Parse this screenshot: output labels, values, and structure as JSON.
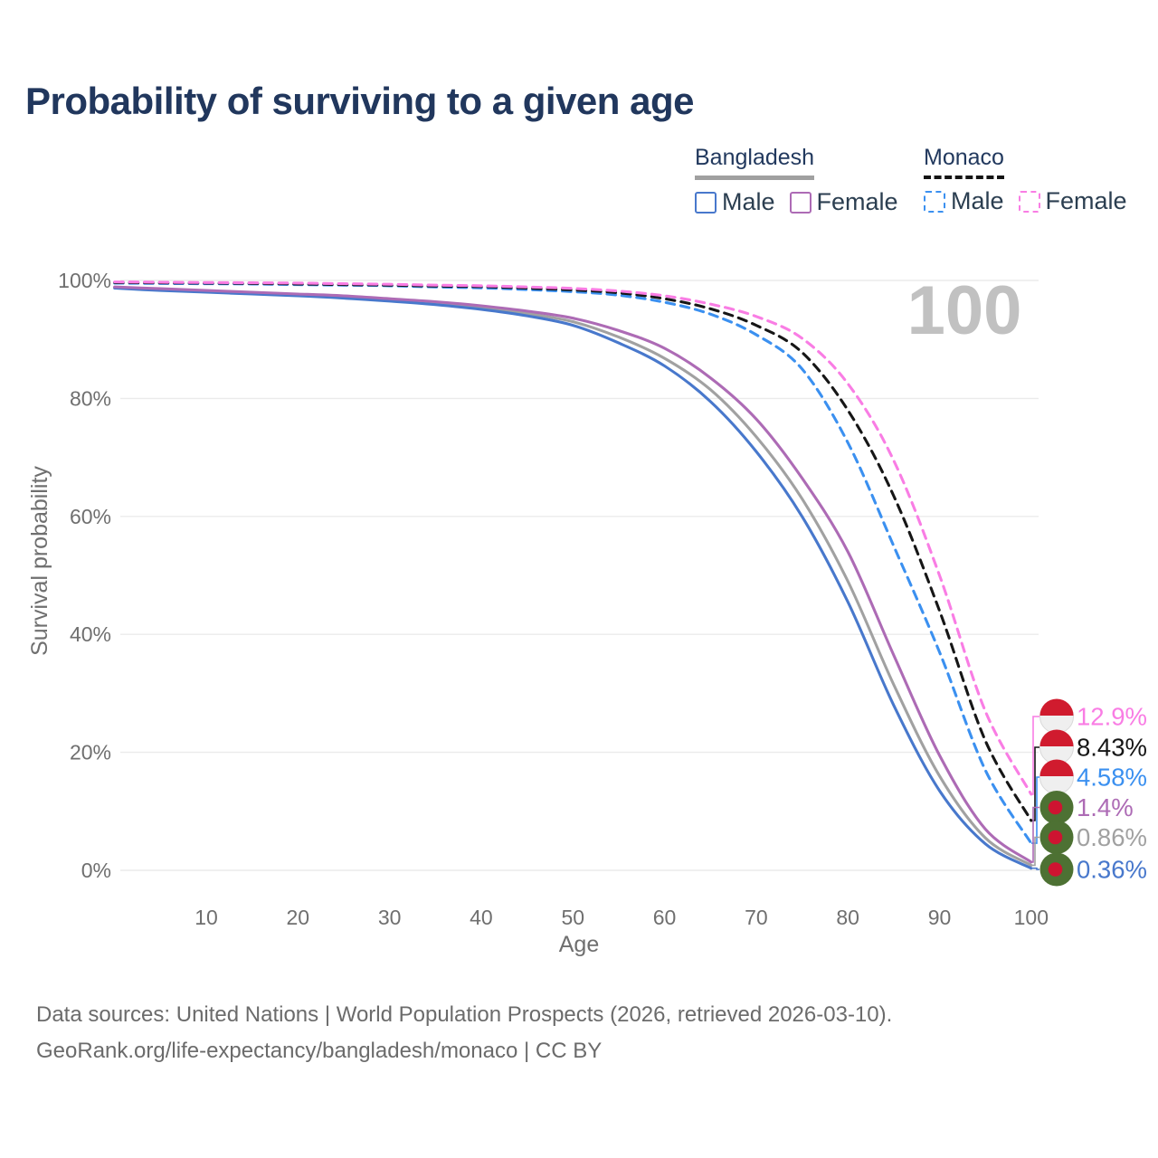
{
  "page": {
    "title": "Probability of surviving to a given age"
  },
  "legend": {
    "groups": [
      {
        "label": "Bangladesh",
        "line_style": "solid",
        "line_color": "#a0a0a0"
      },
      {
        "label": "Monaco",
        "line_style": "dashed",
        "line_color": "#141414"
      }
    ],
    "items": [
      {
        "label": "Male",
        "country": "Bangladesh",
        "color": "#4878cc",
        "dashed": false
      },
      {
        "label": "Female",
        "country": "Bangladesh",
        "color": "#ad6bb5",
        "dashed": false
      },
      {
        "label": "Male",
        "country": "Monaco",
        "color": "#3b90f0",
        "dashed": true
      },
      {
        "label": "Female",
        "country": "Monaco",
        "color": "#f97de4",
        "dashed": true
      }
    ]
  },
  "chart_data": {
    "type": "line",
    "title": "Probability of surviving to a given age",
    "xlabel": "Age",
    "ylabel": "Survival probability",
    "xlim": [
      0,
      100
    ],
    "ylim": [
      0,
      100
    ],
    "xticks": [
      10,
      20,
      30,
      40,
      50,
      60,
      70,
      80,
      90,
      100
    ],
    "yticks": [
      0,
      20,
      40,
      60,
      80,
      100
    ],
    "ytick_suffix": "%",
    "grid": "horizontal",
    "legend_position": "top-right",
    "hover_age_label": "100",
    "ages": [
      0,
      5,
      10,
      15,
      20,
      25,
      30,
      35,
      40,
      45,
      50,
      55,
      60,
      65,
      70,
      75,
      80,
      85,
      90,
      95,
      100
    ],
    "series": [
      {
        "name": "Bangladesh Both sexes",
        "color": "#a1a1a1",
        "dashed": false,
        "flag": "bangladesh",
        "end_label": "0.86%",
        "values": [
          98.8,
          98.5,
          98.2,
          97.9,
          97.6,
          97.2,
          96.7,
          96.1,
          95.4,
          94.4,
          93.0,
          90.4,
          86.8,
          81.5,
          73.5,
          63.0,
          49.0,
          31.5,
          16.0,
          5.5,
          0.86
        ]
      },
      {
        "name": "Bangladesh Male",
        "color": "#4878cc",
        "dashed": false,
        "flag": "bangladesh",
        "end_label": "0.36%",
        "values": [
          98.7,
          98.3,
          98.0,
          97.7,
          97.4,
          97.0,
          96.5,
          95.9,
          95.1,
          94.0,
          92.4,
          89.4,
          85.5,
          79.5,
          71.0,
          60.0,
          45.5,
          28.0,
          13.5,
          4.5,
          0.36
        ]
      },
      {
        "name": "Bangladesh Female",
        "color": "#ad6bb5",
        "dashed": false,
        "flag": "bangladesh",
        "end_label": "1.4%",
        "values": [
          98.9,
          98.6,
          98.3,
          98.0,
          97.7,
          97.4,
          96.9,
          96.4,
          95.7,
          94.8,
          93.6,
          91.5,
          88.5,
          83.5,
          76.5,
          66.5,
          54.0,
          36.5,
          19.5,
          7.0,
          1.4
        ]
      },
      {
        "name": "Monaco Male",
        "color": "#3b90f0",
        "dashed": true,
        "flag": "monaco",
        "end_label": "4.58%",
        "values": [
          99.55,
          99.5,
          99.45,
          99.4,
          99.3,
          99.2,
          99.1,
          98.9,
          98.75,
          98.45,
          98.1,
          97.5,
          96.3,
          94.3,
          90.8,
          85.0,
          72.5,
          55.0,
          37.0,
          17.0,
          4.58
        ]
      },
      {
        "name": "Monaco Both sexes",
        "color": "#161616",
        "dashed": true,
        "flag": "monaco",
        "end_label": "8.43%",
        "values": [
          99.65,
          99.6,
          99.55,
          99.5,
          99.4,
          99.3,
          99.2,
          99.05,
          98.95,
          98.7,
          98.4,
          97.9,
          96.9,
          95.2,
          92.4,
          87.8,
          78.0,
          63.5,
          44.0,
          22.0,
          8.43
        ]
      },
      {
        "name": "Monaco Female",
        "color": "#f97de4",
        "dashed": true,
        "flag": "monaco",
        "end_label": "12.9%",
        "values": [
          99.75,
          99.7,
          99.65,
          99.6,
          99.55,
          99.45,
          99.35,
          99.2,
          99.1,
          98.9,
          98.65,
          98.2,
          97.4,
          96.0,
          93.9,
          90.2,
          82.5,
          69.5,
          50.0,
          27.0,
          12.9
        ]
      }
    ],
    "flag_colors": {
      "monaco_red": "#d01b2e",
      "monaco_white": "#efefef",
      "bangladesh_green": "#4d7133",
      "bangladesh_red": "#ce1431"
    }
  },
  "footer": {
    "line1": "Data sources: United Nations | World Population Prospects (2026, retrieved 2026-03-10).",
    "line2": "GeoRank.org/life-expectancy/bangladesh/monaco | CC BY"
  }
}
